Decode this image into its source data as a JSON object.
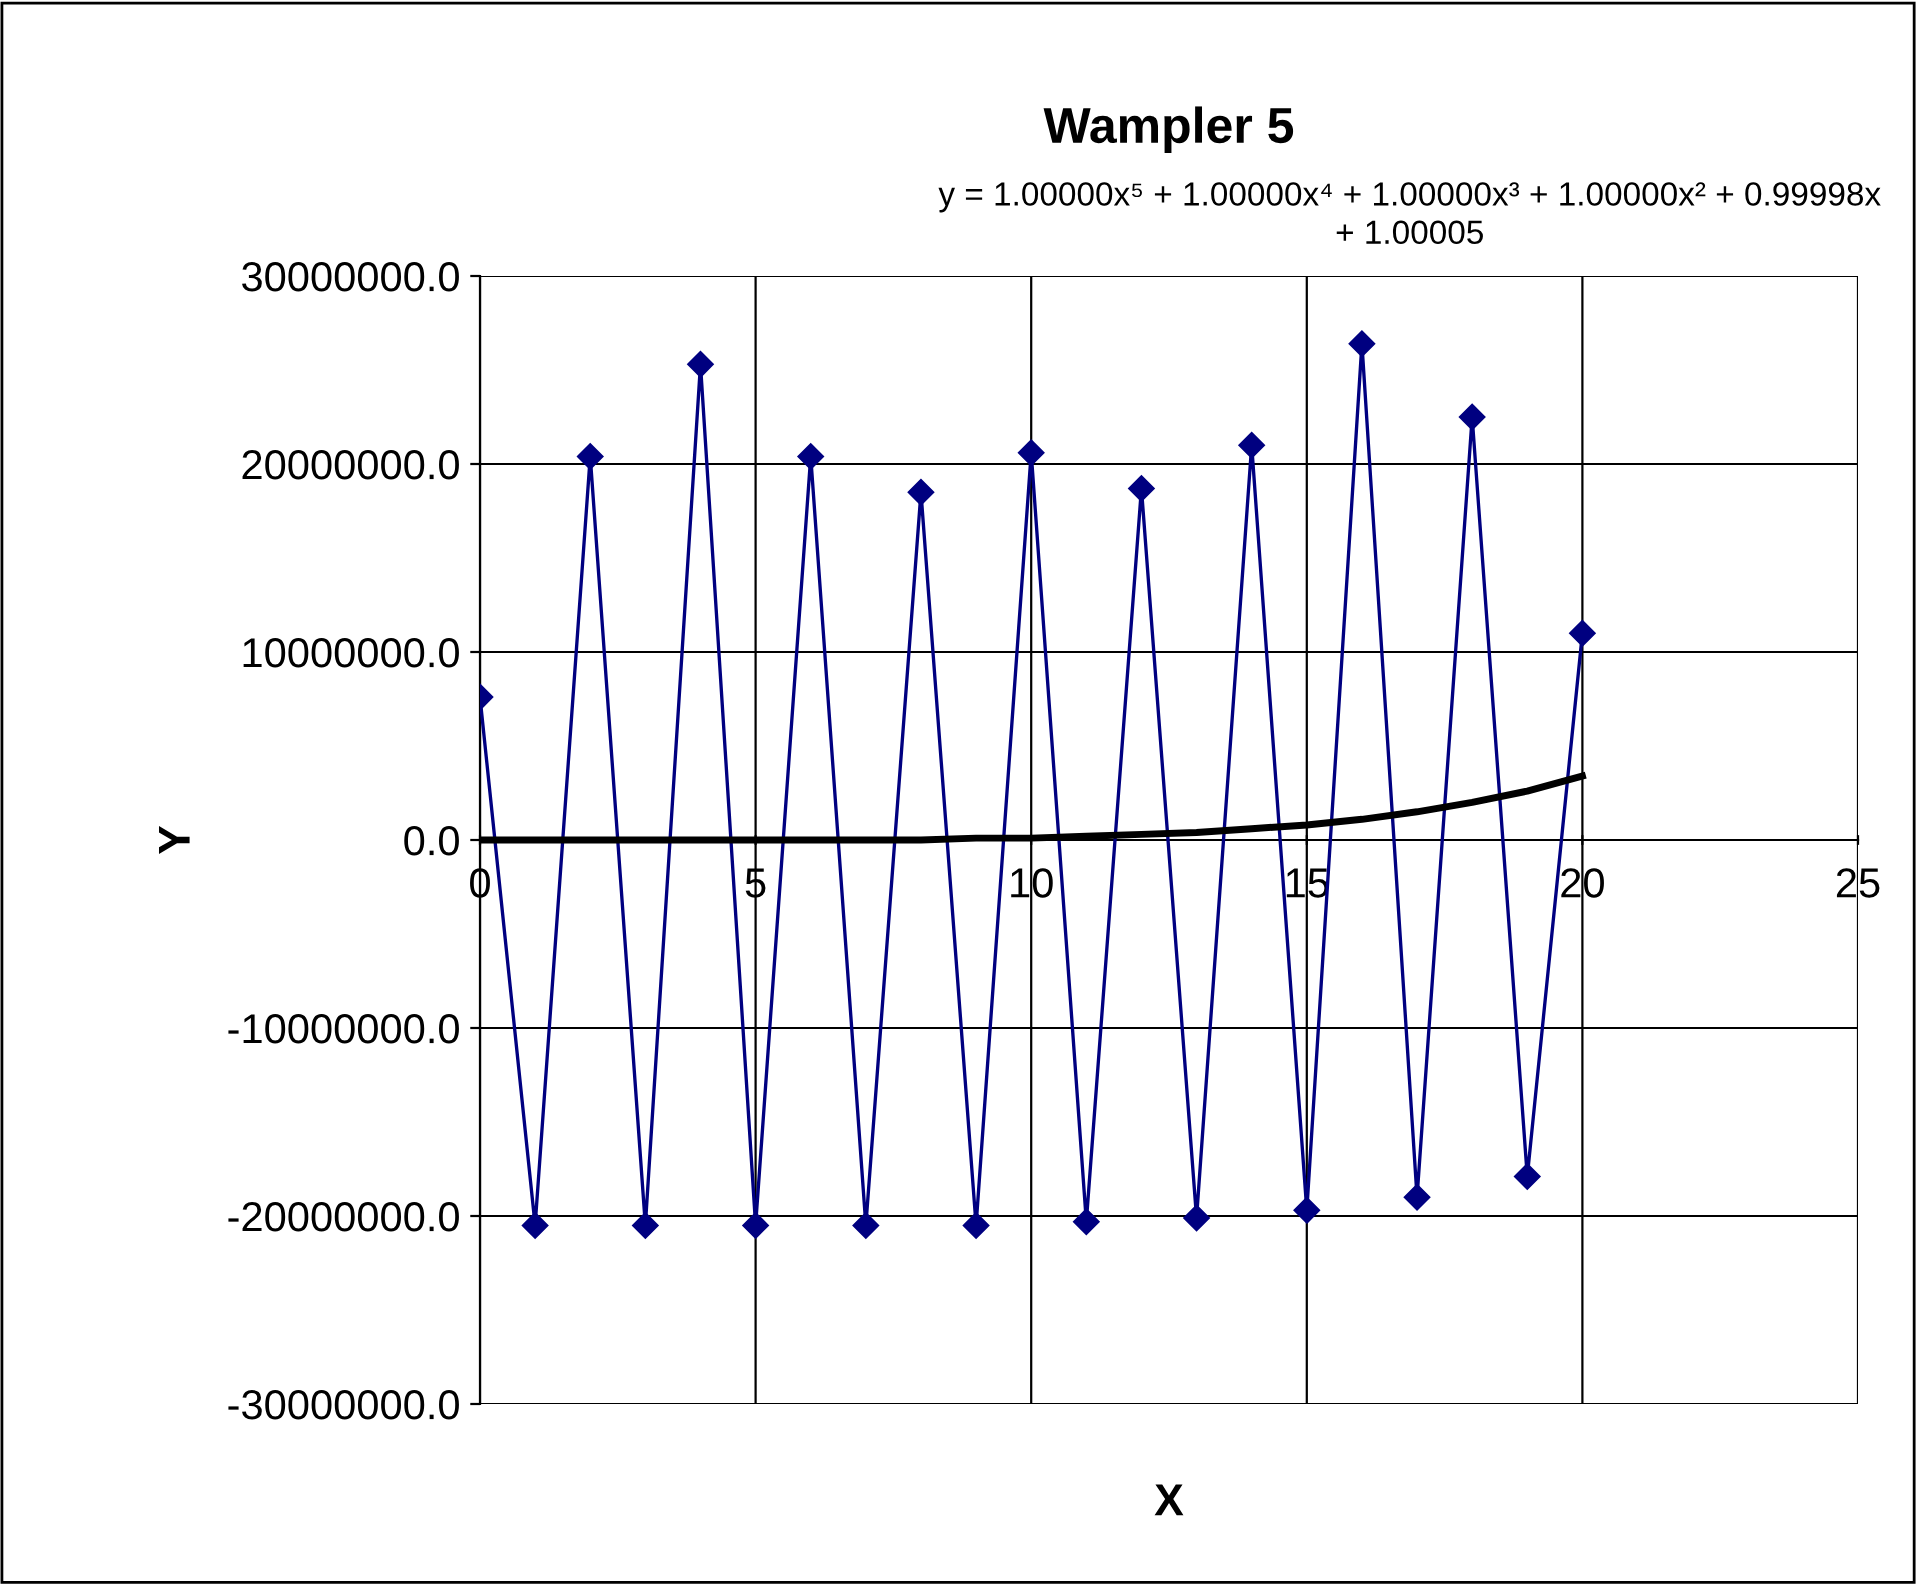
{
  "chart_data": {
    "type": "line",
    "title": "Wampler 5",
    "xlabel": "X",
    "ylabel": "Y",
    "annotations": [
      "y = 1.00000x⁵ + 1.00000x⁴ + 1.00000x³ + 1.00000x² + 0.99998x\n+ 1.00005"
    ],
    "series": [
      {
        "color": "#000080",
        "marker": "diamond",
        "x": [
          0,
          1,
          2,
          3,
          4,
          5,
          6,
          7,
          8,
          9,
          10,
          11,
          12,
          13,
          14,
          15,
          16,
          17,
          18,
          19,
          20
        ],
        "values": [
          7600000,
          -20500000,
          20400000,
          -20500000,
          25300000,
          -20500000,
          20400000,
          -20500000,
          18500000,
          -20500000,
          20600000,
          -20300000,
          18700000,
          -20100000,
          21000000,
          -19700000,
          26400000,
          -19000000,
          22500000,
          -17900000,
          11000000
        ]
      },
      {
        "type": "line",
        "color": "#000000",
        "marker": "none",
        "x": [
          0,
          1,
          2,
          3,
          4,
          5,
          6,
          7,
          8,
          9,
          10,
          11,
          12,
          13,
          14,
          15,
          16,
          17,
          18,
          19,
          20
        ],
        "values": [
          0,
          0,
          0,
          0,
          0,
          0,
          0,
          0,
          0,
          100000,
          100000,
          200000,
          300000,
          400000,
          600000,
          800000,
          1100000,
          1500000,
          2000000,
          2600000,
          3400000
        ]
      }
    ],
    "xlim": [
      0,
      25
    ],
    "xticks": [
      0,
      5,
      10,
      15,
      20,
      25
    ],
    "ylim": [
      -30000000,
      30000000
    ],
    "yticks": [
      {
        "value": -30000000,
        "label": "-30000000.0"
      },
      {
        "value": -20000000,
        "label": "-20000000.0"
      },
      {
        "value": -10000000,
        "label": "-10000000.0"
      },
      {
        "value": 0,
        "label": "0.0"
      },
      {
        "value": 10000000,
        "label": "10000000.0"
      },
      {
        "value": 20000000,
        "label": "20000000.0"
      },
      {
        "value": 30000000,
        "label": "30000000.0"
      }
    ],
    "grid": true,
    "legend": false
  }
}
